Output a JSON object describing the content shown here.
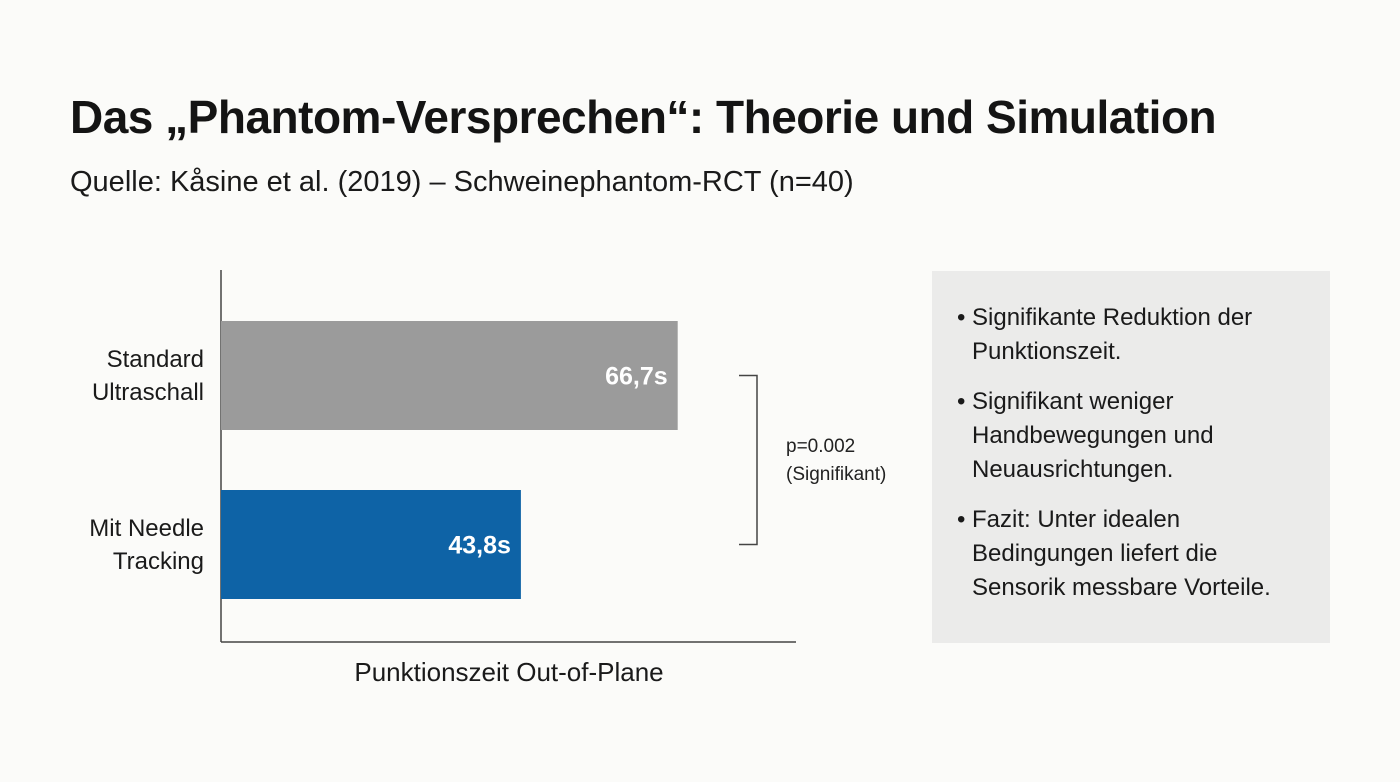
{
  "slide": {
    "title": "Das „Phantom-Versprechen“: Theorie und Simulation",
    "subtitle": "Quelle: Kåsine et al. (2019) – Schweinephantom-RCT (n=40)"
  },
  "chart_data": {
    "type": "bar",
    "orientation": "horizontal",
    "categories": [
      [
        "Standard",
        "Ultraschall"
      ],
      [
        "Mit Needle",
        "Tracking"
      ]
    ],
    "values": [
      66.7,
      43.8
    ],
    "value_labels": [
      "66,7s",
      "43,8s"
    ],
    "colors": [
      "#9b9b9b",
      "#0e63a6"
    ],
    "xlabel": "Punktionszeit Out-of-Plane",
    "ylabel": "",
    "xlim": [
      0,
      85
    ],
    "grid": false,
    "annotation": {
      "type": "significance-bracket",
      "lines": [
        "p=0.002",
        "(Signifikant)"
      ]
    }
  },
  "info_box": {
    "bullet_symbol": "•",
    "items": [
      "Signifikante Reduktion der Punktionszeit.",
      "Signifikant weniger Handbewegungen und Neuausrichtungen.",
      "Fazit: Unter idealen Bedingungen liefert die Sensorik messbare Vorteile."
    ]
  }
}
